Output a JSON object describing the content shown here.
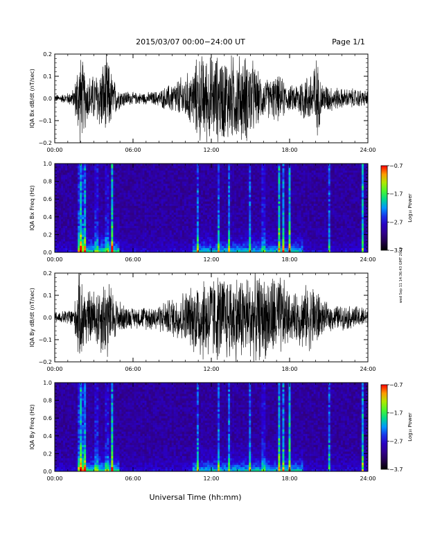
{
  "header": {
    "date_range": "2015/03/07  00:00−24:00 UT",
    "page": "Page 1/1"
  },
  "footer": {
    "xlabel": "Universal Time (hh:mm)",
    "side_stamp": "wed Sep 11 14:36:43 GMT 2019"
  },
  "colors": {
    "trace": "#000000",
    "background_spec": "#000000"
  },
  "chart_data": [
    {
      "type": "line",
      "ylabel": "IQA Bx dB/dt (nT/sec)",
      "xlabel": "",
      "xlim": [
        0,
        24
      ],
      "ylim": [
        -0.2,
        0.2
      ],
      "xticks": [
        "00:00",
        "06:00",
        "12:00",
        "18:00",
        "24:00"
      ],
      "yticks": [
        "−0.2",
        "−0.1",
        "0.0",
        "0.1",
        "0.2"
      ],
      "envelope": {
        "x": [
          0,
          0.5,
          1,
          1.5,
          1.8,
          2.0,
          2.5,
          3.0,
          3.5,
          4.0,
          4.5,
          5.0,
          5.5,
          6,
          7,
          8,
          9,
          9.5,
          10,
          10.5,
          11,
          11.5,
          12,
          12.5,
          13,
          13.5,
          14,
          14.5,
          15,
          15.5,
          16,
          16.5,
          17,
          17.5,
          18,
          18.5,
          19,
          19.5,
          20,
          20.5,
          21,
          22,
          23,
          24
        ],
        "amplitude": [
          0.02,
          0.02,
          0.03,
          0.05,
          0.22,
          0.22,
          0.12,
          0.12,
          0.16,
          0.22,
          0.1,
          0.05,
          0.04,
          0.03,
          0.03,
          0.04,
          0.08,
          0.1,
          0.12,
          0.14,
          0.22,
          0.22,
          0.22,
          0.22,
          0.22,
          0.22,
          0.22,
          0.22,
          0.22,
          0.14,
          0.1,
          0.1,
          0.12,
          0.1,
          0.06,
          0.08,
          0.12,
          0.12,
          0.22,
          0.08,
          0.07,
          0.05,
          0.05,
          0.04
        ]
      }
    },
    {
      "type": "heatmap",
      "ylabel": "IQA Bx Freq (Hz)",
      "colorbar_label": "Log₁₀ Power",
      "xlim": [
        0,
        24
      ],
      "ylim": [
        0.0,
        1.0
      ],
      "clim": [
        -3.7,
        -0.7
      ],
      "xticks": [
        "00:00",
        "06:00",
        "12:00",
        "18:00",
        "24:00"
      ],
      "yticks": [
        "0.0",
        "0.2",
        "0.4",
        "0.6",
        "0.8",
        "1.0"
      ],
      "cticks": [
        "−0.7",
        "−1.7",
        "−2.7",
        "−3.7"
      ],
      "intense_times": [
        1.9,
        2.0,
        2.1,
        2.3,
        3.2,
        4.0,
        4.4,
        11.0,
        12.6,
        13.4,
        15.0,
        16.0,
        17.2,
        17.5,
        18.0,
        21.0,
        23.6
      ]
    },
    {
      "type": "line",
      "ylabel": "IQA By dB/dt (nT/sec)",
      "xlabel": "",
      "xlim": [
        0,
        24
      ],
      "ylim": [
        -0.2,
        0.2
      ],
      "xticks": [
        "00:00",
        "06:00",
        "12:00",
        "18:00",
        "24:00"
      ],
      "yticks": [
        "−0.2",
        "−0.1",
        "0.0",
        "0.1",
        "0.2"
      ],
      "envelope": {
        "x": [
          0,
          0.5,
          1,
          1.5,
          1.8,
          2.0,
          2.5,
          3.0,
          3.5,
          4.0,
          4.5,
          5.0,
          5.5,
          6,
          7,
          8,
          9,
          9.5,
          10,
          10.5,
          11,
          11.5,
          12,
          12.5,
          13,
          13.5,
          14,
          14.5,
          15,
          15.5,
          16,
          16.5,
          17,
          17.5,
          18,
          18.5,
          19,
          19.5,
          20,
          20.5,
          21,
          22,
          23,
          24
        ],
        "amplitude": [
          0.03,
          0.03,
          0.04,
          0.06,
          0.22,
          0.22,
          0.14,
          0.14,
          0.18,
          0.22,
          0.12,
          0.08,
          0.06,
          0.05,
          0.06,
          0.07,
          0.1,
          0.12,
          0.14,
          0.15,
          0.22,
          0.22,
          0.22,
          0.22,
          0.22,
          0.22,
          0.22,
          0.22,
          0.22,
          0.22,
          0.2,
          0.22,
          0.22,
          0.2,
          0.12,
          0.12,
          0.16,
          0.16,
          0.18,
          0.08,
          0.07,
          0.06,
          0.06,
          0.05
        ]
      }
    },
    {
      "type": "heatmap",
      "ylabel": "IQA By Freq (Hz)",
      "colorbar_label": "Log₁₀ Power",
      "xlim": [
        0,
        24
      ],
      "ylim": [
        0.0,
        1.0
      ],
      "clim": [
        -3.7,
        -0.7
      ],
      "xticks": [
        "00:00",
        "06:00",
        "12:00",
        "18:00",
        "24:00"
      ],
      "yticks": [
        "0.0",
        "0.2",
        "0.4",
        "0.6",
        "0.8",
        "1.0"
      ],
      "cticks": [
        "−0.7",
        "−1.7",
        "−2.7",
        "−3.7"
      ],
      "intense_times": [
        1.9,
        2.0,
        2.1,
        2.3,
        3.2,
        4.0,
        4.4,
        11.0,
        12.6,
        13.4,
        15.0,
        16.0,
        17.2,
        17.5,
        18.0,
        21.0,
        23.6
      ]
    }
  ]
}
